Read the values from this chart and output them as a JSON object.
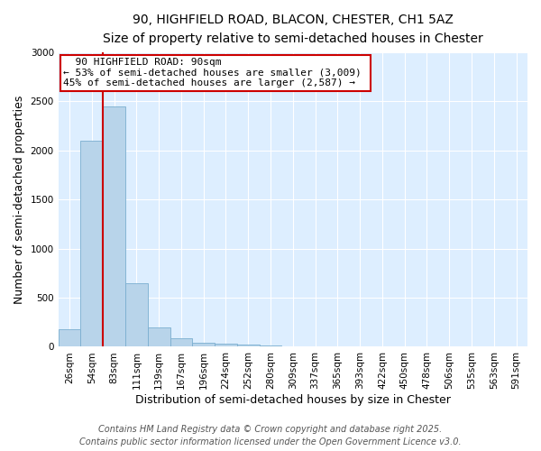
{
  "title_line1": "90, HIGHFIELD ROAD, BLACON, CHESTER, CH1 5AZ",
  "title_line2": "Size of property relative to semi-detached houses in Chester",
  "xlabel": "Distribution of semi-detached houses by size in Chester",
  "ylabel": "Number of semi-detached properties",
  "categories": [
    "26sqm",
    "54sqm",
    "83sqm",
    "111sqm",
    "139sqm",
    "167sqm",
    "196sqm",
    "224sqm",
    "252sqm",
    "280sqm",
    "309sqm",
    "337sqm",
    "365sqm",
    "393sqm",
    "422sqm",
    "450sqm",
    "478sqm",
    "506sqm",
    "535sqm",
    "563sqm",
    "591sqm"
  ],
  "values": [
    175,
    2100,
    2450,
    645,
    200,
    85,
    45,
    30,
    20,
    15,
    0,
    0,
    0,
    0,
    0,
    0,
    0,
    0,
    0,
    0,
    0
  ],
  "bar_color": "#b8d4ea",
  "bar_edge_color": "#7aaed0",
  "highlight_index": 2,
  "vline_color": "#cc0000",
  "ylim": [
    0,
    3000
  ],
  "yticks": [
    0,
    500,
    1000,
    1500,
    2000,
    2500,
    3000
  ],
  "annotation_title": "90 HIGHFIELD ROAD: 90sqm",
  "annotation_line1": "← 53% of semi-detached houses are smaller (3,009)",
  "annotation_line2": "45% of semi-detached houses are larger (2,587) →",
  "annotation_box_color": "#ffffff",
  "annotation_box_edge": "#cc0000",
  "footer_line1": "Contains HM Land Registry data © Crown copyright and database right 2025.",
  "footer_line2": "Contains public sector information licensed under the Open Government Licence v3.0.",
  "fig_bg_color": "#ffffff",
  "plot_bg_color": "#ddeeff",
  "title_fontsize": 10,
  "subtitle_fontsize": 9,
  "axis_label_fontsize": 9,
  "tick_fontsize": 7.5,
  "annotation_fontsize": 8,
  "footer_fontsize": 7
}
